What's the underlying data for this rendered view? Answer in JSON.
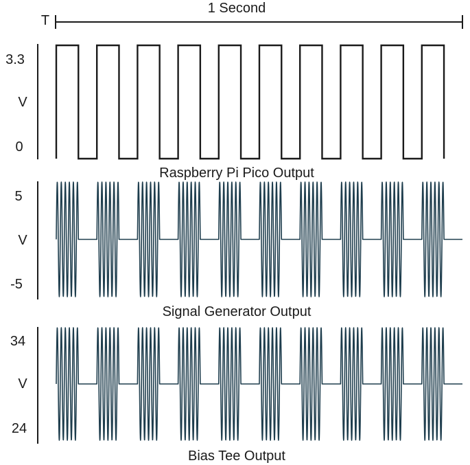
{
  "period_marker": {
    "label": "T",
    "span_label": "1 Second"
  },
  "panels": [
    {
      "id": "pico",
      "caption": "Raspberry Pi Pico Output",
      "y_labels": {
        "top": "3.3",
        "mid": "V",
        "bottom": "0"
      },
      "waveform": "square",
      "pulses": 10,
      "high": 3.3,
      "low": 0,
      "units": "V"
    },
    {
      "id": "siggen",
      "caption": "Signal Generator Output",
      "y_labels": {
        "top": "5",
        "mid": "V",
        "bottom": "-5"
      },
      "waveform": "gated-sine",
      "bursts": 10,
      "max": 5,
      "min": -5,
      "units": "V"
    },
    {
      "id": "biastee",
      "caption": "Bias Tee Output",
      "y_labels": {
        "top": "34",
        "mid": "V",
        "bottom": "24"
      },
      "waveform": "gated-sine",
      "bursts": 10,
      "max": 34,
      "min": 24,
      "units": "V"
    }
  ],
  "colors": {
    "square": "#1a1a1a",
    "burst": "#1e3d4d",
    "axis": "#1a1a1a"
  }
}
